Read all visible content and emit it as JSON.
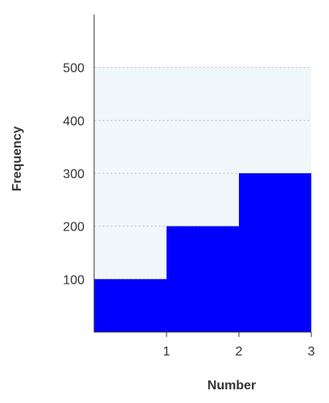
{
  "chart_data": {
    "type": "bar",
    "title": "",
    "xlabel": "Number",
    "ylabel": "Frequency",
    "x_ticks": [
      "1",
      "2",
      "3"
    ],
    "y_ticks": [
      "100",
      "200",
      "300",
      "400",
      "500"
    ],
    "xlim": [
      0,
      3
    ],
    "ylim": [
      0,
      600
    ],
    "shaded_band": [
      0,
      500
    ],
    "grid": true,
    "bars": [
      {
        "x0": 0,
        "x1": 1,
        "value": 100
      },
      {
        "x0": 1,
        "x1": 2,
        "value": 200
      },
      {
        "x0": 2,
        "x1": 3,
        "value": 300
      }
    ],
    "colors": {
      "bar": "#0000ff",
      "band": "#f0f7fb",
      "grid": "#c8cdd2",
      "axis": "#333333"
    }
  }
}
